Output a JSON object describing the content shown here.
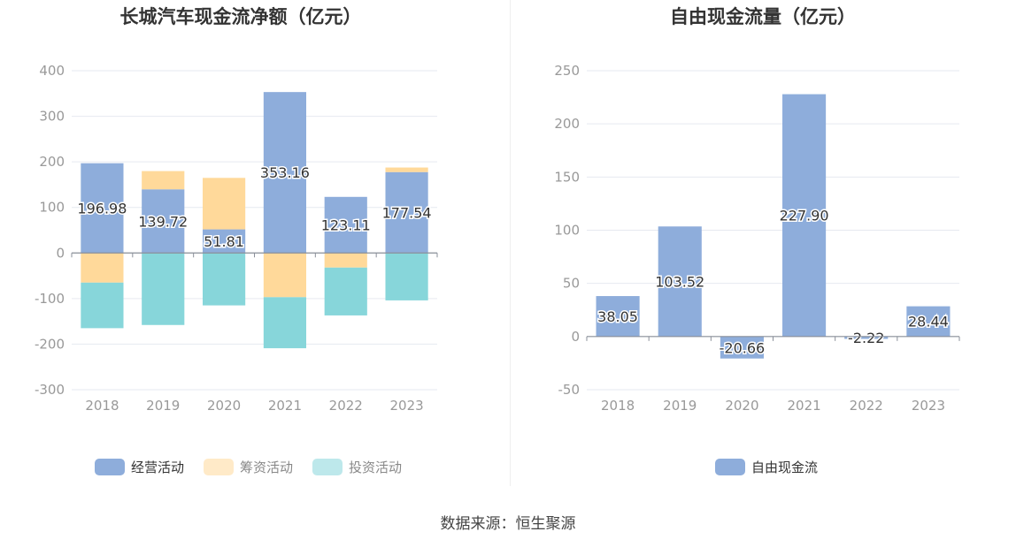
{
  "source_note": "数据来源：恒生聚源",
  "colors": {
    "operating": "#8eaddb",
    "financing": "#ffd99a",
    "investing": "#87d6da",
    "free_cf": "#8eaddb",
    "grid": "#e6e9f0",
    "axis_text": "#999999",
    "title": "#333333"
  },
  "chart_data": [
    {
      "type": "bar",
      "title": "长城汽车现金流净额（亿元）",
      "stacked": true,
      "categories": [
        "2018",
        "2019",
        "2020",
        "2021",
        "2022",
        "2023"
      ],
      "series": [
        {
          "name": "经营活动",
          "values": [
            196.98,
            139.72,
            51.81,
            353.16,
            123.11,
            177.54
          ],
          "labeled": true
        },
        {
          "name": "筹资活动",
          "values": [
            -65,
            40,
            113,
            -97,
            -32,
            10
          ]
        },
        {
          "name": "投资活动",
          "values": [
            -100,
            -158,
            -115,
            -112,
            -105,
            -104
          ]
        }
      ],
      "ylim": [
        -300,
        400
      ],
      "yticks": [
        -300,
        -200,
        -100,
        0,
        100,
        200,
        300,
        400
      ],
      "grid": true,
      "legend": "bottom"
    },
    {
      "type": "bar",
      "title": "自由现金流量（亿元）",
      "categories": [
        "2018",
        "2019",
        "2020",
        "2021",
        "2022",
        "2023"
      ],
      "series": [
        {
          "name": "自由现金流",
          "values": [
            38.05,
            103.52,
            -20.66,
            227.9,
            -2.22,
            28.44
          ],
          "labeled": true
        }
      ],
      "ylim": [
        -50,
        250
      ],
      "yticks": [
        -50,
        0,
        50,
        100,
        150,
        200,
        250
      ],
      "grid": true,
      "legend": "bottom"
    }
  ]
}
